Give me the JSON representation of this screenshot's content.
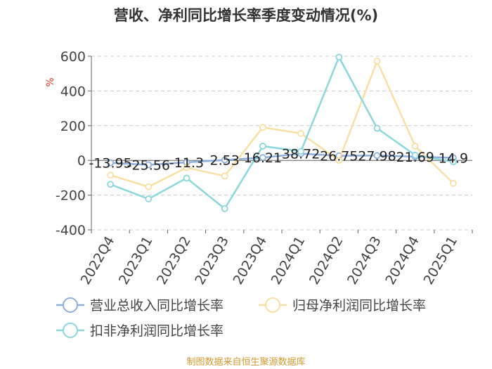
{
  "chart_data": {
    "type": "line",
    "title": "营收、净利同比增长率季度变动情况(%)",
    "ylabel": "%",
    "xlabel": "",
    "ylim": [
      -400,
      600
    ],
    "yticks": [
      -400,
      -200,
      0,
      200,
      400,
      600
    ],
    "categories": [
      "2022Q4",
      "2023Q1",
      "2023Q2",
      "2023Q3",
      "2023Q4",
      "2024Q1",
      "2024Q2",
      "2024Q3",
      "2024Q4",
      "2025Q1"
    ],
    "grid": true,
    "legend_position": "bottom",
    "series": [
      {
        "name": "营业总收入同比增长率",
        "color": "#8fb0de",
        "values": [
          -13.95,
          -25.56,
          -11.3,
          2.53,
          16.21,
          38.72,
          26.75,
          27.98,
          21.69,
          14.9
        ],
        "labels": [
          "-13.95",
          "-25.56",
          "-11.3",
          "2.53",
          "16.21",
          "38.72",
          "26.75",
          "27.98",
          "21.69",
          "14.9"
        ]
      },
      {
        "name": "归母净利润同比增长率",
        "color": "#fbe0a6",
        "values": [
          -85,
          -152,
          -42,
          -90,
          190,
          155,
          0,
          572,
          82,
          -132
        ]
      },
      {
        "name": "扣非净利润同比增长率",
        "color": "#8cd8dc",
        "values": [
          -138,
          -222,
          -102,
          -278,
          82,
          52,
          595,
          185,
          30,
          -8
        ]
      }
    ],
    "source": "制图数据来自恒生聚源数据库"
  }
}
